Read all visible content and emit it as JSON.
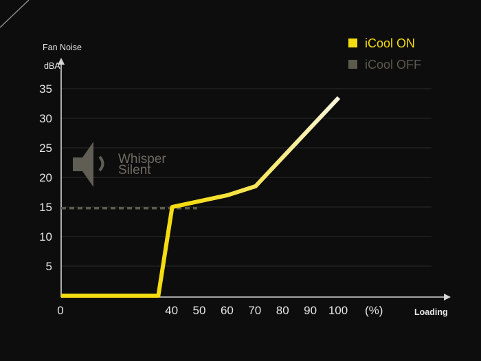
{
  "chart_data": {
    "type": "line",
    "title": "",
    "ylabel": "Fan Noise",
    "yunit": "dBA",
    "xlabel": "Loading",
    "xunit": "(%)",
    "ylim": [
      0,
      35
    ],
    "yticks": [
      5,
      10,
      15,
      20,
      25,
      30,
      35
    ],
    "xticks": [
      0,
      40,
      50,
      60,
      70,
      80,
      90,
      100
    ],
    "grid": true,
    "legend_position": "top-right",
    "series": [
      {
        "name": "iCool ON",
        "color": "#f5dc10",
        "color_end": "#fbf6de",
        "points": [
          [
            0,
            0
          ],
          [
            35,
            0
          ],
          [
            40,
            15
          ],
          [
            60,
            17
          ],
          [
            70,
            18.5
          ],
          [
            80,
            23.5
          ],
          [
            100,
            33.5
          ]
        ]
      },
      {
        "name": "iCool OFF",
        "color": "#5b5a4c",
        "dashed": true,
        "points": [
          [
            0,
            14.8
          ],
          [
            49,
            14.8
          ]
        ]
      }
    ],
    "annotations": [
      {
        "text_line1": "Whisper",
        "text_line2": "Silent",
        "icon": "speaker-icon"
      }
    ]
  }
}
